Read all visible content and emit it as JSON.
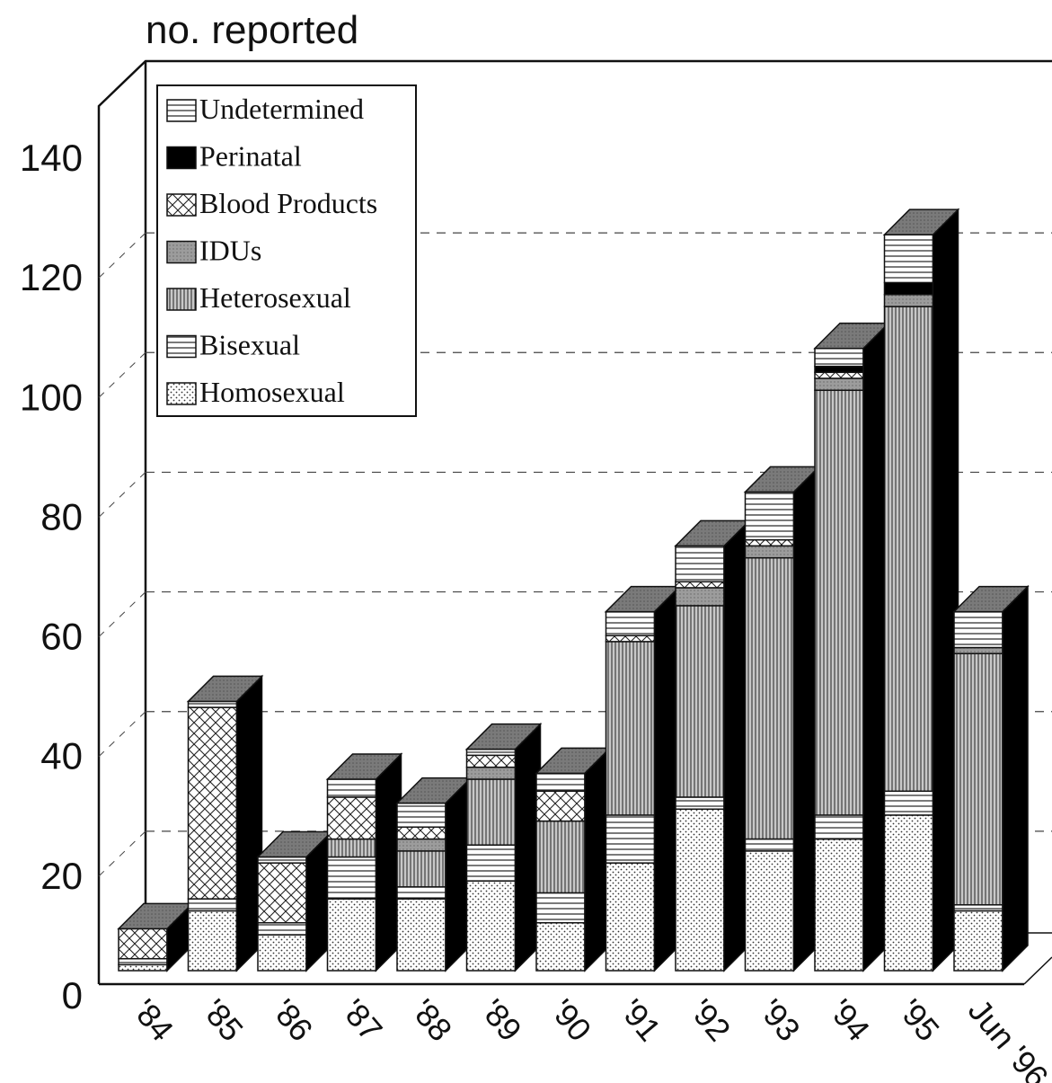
{
  "chart_data": {
    "type": "bar",
    "stacked": true,
    "three_d": true,
    "ylabel": "no. reported",
    "ylim": [
      0,
      140
    ],
    "yticks": [
      "0",
      "20",
      "40",
      "60",
      "80",
      "100",
      "120",
      "140"
    ],
    "categories": [
      "'84",
      "'85",
      "'86",
      "'87",
      "'88",
      "'89",
      "'90",
      "'91",
      "'92",
      "'93",
      "'94",
      "'95",
      "Jun '96"
    ],
    "grid": true,
    "legend_position": "top-left",
    "series": [
      {
        "name": "Homosexual",
        "pattern": "dots",
        "values": [
          1,
          10,
          6,
          12,
          12,
          15,
          8,
          18,
          27,
          20,
          22,
          26,
          10
        ]
      },
      {
        "name": "Bisexual",
        "pattern": "hlines",
        "values": [
          1,
          2,
          2,
          7,
          2,
          6,
          5,
          8,
          2,
          2,
          4,
          4,
          1
        ]
      },
      {
        "name": "Heterosexual",
        "pattern": "vlines",
        "values": [
          0,
          0,
          0,
          3,
          6,
          11,
          12,
          29,
          32,
          47,
          71,
          81,
          42
        ]
      },
      {
        "name": "IDUs",
        "pattern": "gray",
        "values": [
          0,
          0,
          0,
          0,
          2,
          2,
          0,
          0,
          3,
          2,
          2,
          2,
          1
        ]
      },
      {
        "name": "Blood Products",
        "pattern": "crosshatch",
        "values": [
          5,
          32,
          10,
          7,
          2,
          2,
          5,
          1,
          1,
          1,
          1,
          0,
          0
        ]
      },
      {
        "name": "Perinatal",
        "pattern": "black",
        "values": [
          0,
          0,
          0,
          0,
          0,
          0,
          0,
          0,
          0,
          0,
          1,
          2,
          0
        ]
      },
      {
        "name": "Undetermined",
        "pattern": "hlines",
        "values": [
          0,
          1,
          1,
          3,
          4,
          1,
          3,
          4,
          6,
          8,
          3,
          8,
          6
        ]
      }
    ],
    "legend_order": [
      "Undetermined",
      "Perinatal",
      "Blood Products",
      "IDUs",
      "Heterosexual",
      "Bisexual",
      "Homosexual"
    ],
    "colors": {
      "ink": "#111111",
      "top_face": "#777777",
      "gray_fill": "#b8b8b8",
      "paper": "#ffffff"
    }
  }
}
